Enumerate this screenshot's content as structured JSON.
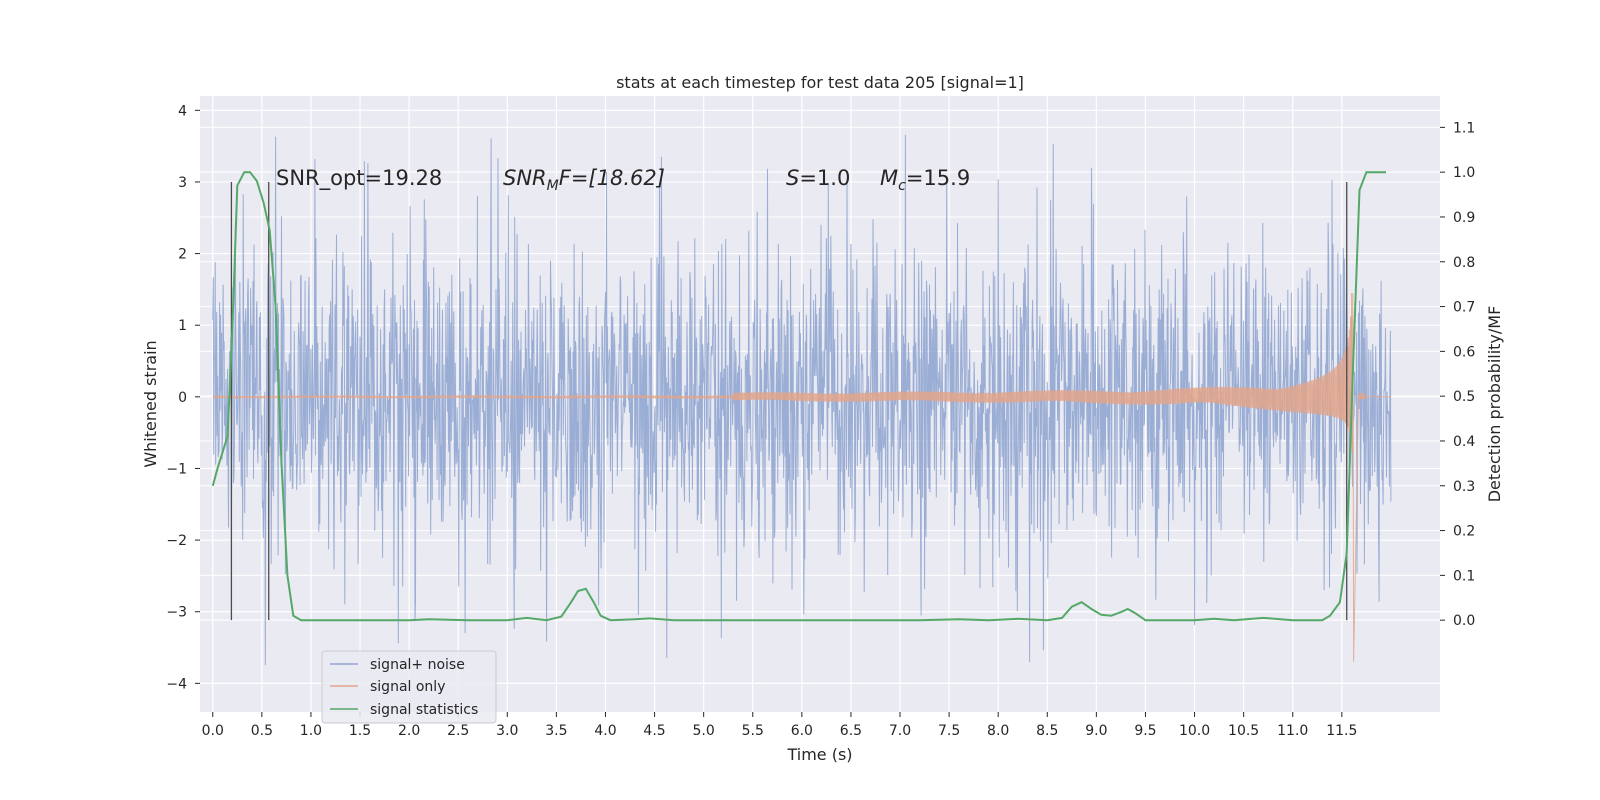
{
  "chart_data": {
    "type": "line",
    "title": "stats at each timestep for test data 205 [signal=1]",
    "xlabel": "Time (s)",
    "ylabel": "Whitened strain",
    "y2label": "Detection probability/MF",
    "xlim": [
      -0.13,
      12.5
    ],
    "ylim": [
      -4.4,
      4.2
    ],
    "y2lim": [
      -0.205,
      1.17
    ],
    "x_ticks": [
      "0.0",
      "0.5",
      "1.0",
      "1.5",
      "2.0",
      "2.5",
      "3.0",
      "3.5",
      "4.0",
      "4.5",
      "5.0",
      "5.5",
      "6.0",
      "6.5",
      "7.0",
      "7.5",
      "8.0",
      "8.5",
      "9.0",
      "9.5",
      "10.0",
      "10.5",
      "11.0",
      "11.5"
    ],
    "y_ticks": [
      "4",
      "3",
      "2",
      "1",
      "0",
      "−1",
      "−2",
      "−3",
      "−4"
    ],
    "y2_ticks": [
      "1.1",
      "1.0",
      "0.9",
      "0.8",
      "0.7",
      "0.6",
      "0.5",
      "0.4",
      "0.3",
      "0.2",
      "0.1",
      "0.0"
    ],
    "grid": true,
    "legend_position": "lower-left",
    "annotations": {
      "snr_opt": "SNR_opt=19.28",
      "snr_mf_sym": "SNR",
      "snr_mf_sub": "M",
      "snr_mf_rest": "F=[18.62]",
      "s_sym": "S",
      "s_rest": "=1.0",
      "mc_sym": "M",
      "mc_sub": "c",
      "mc_rest": "=15.9"
    },
    "vertical_markers_x": [
      0.19,
      0.57,
      11.55
    ],
    "series": [
      {
        "name": "signal+ noise",
        "color": "#91a6d0",
        "t_range": [
          0.0,
          12.0
        ],
        "envelope": {
          "typical_abs": 1.3,
          "spikes_up_to": 3.8,
          "min": -4.1
        }
      },
      {
        "name": "signal only",
        "color": "#e3a58a",
        "t_range": [
          0.0,
          12.0
        ],
        "chirp": {
          "start_visible": 7.3,
          "merger_time": 11.62,
          "peak_amplitude": 1.45,
          "min_spike": -3.7
        }
      },
      {
        "name": "signal statistics",
        "color": "#55a868",
        "axis": "right",
        "points": [
          [
            0.0,
            0.3
          ],
          [
            0.05,
            0.34
          ],
          [
            0.15,
            0.41
          ],
          [
            0.2,
            0.65
          ],
          [
            0.25,
            0.97
          ],
          [
            0.32,
            1.0
          ],
          [
            0.38,
            1.0
          ],
          [
            0.45,
            0.98
          ],
          [
            0.52,
            0.93
          ],
          [
            0.58,
            0.87
          ],
          [
            0.64,
            0.7
          ],
          [
            0.7,
            0.35
          ],
          [
            0.76,
            0.1
          ],
          [
            0.82,
            0.01
          ],
          [
            0.9,
            0.0
          ],
          [
            1.5,
            0.0
          ],
          [
            2.0,
            0.0
          ],
          [
            2.2,
            0.002
          ],
          [
            2.6,
            0.0
          ],
          [
            3.0,
            0.0
          ],
          [
            3.2,
            0.005
          ],
          [
            3.4,
            0.0
          ],
          [
            3.55,
            0.008
          ],
          [
            3.65,
            0.04
          ],
          [
            3.72,
            0.065
          ],
          [
            3.8,
            0.07
          ],
          [
            3.88,
            0.04
          ],
          [
            3.95,
            0.01
          ],
          [
            4.05,
            0.0
          ],
          [
            4.3,
            0.002
          ],
          [
            4.45,
            0.004
          ],
          [
            4.7,
            0.0
          ],
          [
            5.5,
            0.0
          ],
          [
            6.5,
            0.0
          ],
          [
            7.2,
            0.0
          ],
          [
            7.6,
            0.002
          ],
          [
            7.9,
            0.0
          ],
          [
            8.2,
            0.003
          ],
          [
            8.5,
            0.0
          ],
          [
            8.65,
            0.005
          ],
          [
            8.75,
            0.03
          ],
          [
            8.85,
            0.04
          ],
          [
            8.95,
            0.025
          ],
          [
            9.05,
            0.012
          ],
          [
            9.15,
            0.01
          ],
          [
            9.25,
            0.018
          ],
          [
            9.32,
            0.025
          ],
          [
            9.4,
            0.015
          ],
          [
            9.5,
            0.0
          ],
          [
            10.0,
            0.0
          ],
          [
            10.2,
            0.003
          ],
          [
            10.4,
            0.0
          ],
          [
            10.7,
            0.005
          ],
          [
            11.0,
            0.0
          ],
          [
            11.3,
            0.0
          ],
          [
            11.38,
            0.01
          ],
          [
            11.48,
            0.04
          ],
          [
            11.55,
            0.15
          ],
          [
            11.62,
            0.6
          ],
          [
            11.68,
            0.96
          ],
          [
            11.75,
            1.0
          ],
          [
            11.95,
            1.0
          ]
        ]
      }
    ]
  }
}
